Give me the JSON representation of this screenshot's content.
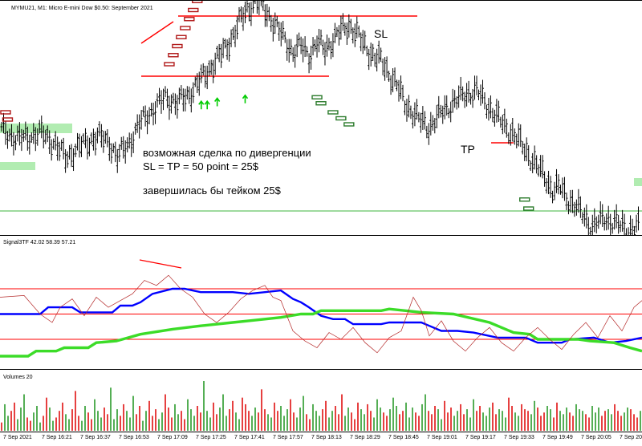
{
  "header": {
    "title": "MYMU21, M1:  Micro E-mini Dow $0.50: September 2021"
  },
  "annotations": {
    "sl_label": "SL",
    "tp_label": "TP",
    "note_line1": "возможная сделка по дивергенции",
    "note_line2": "SL = TP = 50 point = 25$",
    "note_line3": "завершилась бы тейком 25$"
  },
  "indicator": {
    "label": "Signal3TF 42.02 58.39 57.21"
  },
  "volumes": {
    "label": "Volumes 20"
  },
  "x_axis": {
    "ticks": [
      "7 Sep 2021",
      "7 Sep 16:21",
      "7 Sep 16:37",
      "7 Sep 16:53",
      "7 Sep 17:09",
      "7 Sep 17:25",
      "7 Sep 17:41",
      "7 Sep 17:57",
      "7 Sep 18:13",
      "7 Sep 18:29",
      "7 Sep 18:45",
      "7 Sep 19:01",
      "7 Sep 19:17",
      "7 Sep 19:33",
      "7 Sep 19:49",
      "7 Sep 20:05",
      "7 Sep 20"
    ]
  },
  "colors": {
    "background": "#ffffff",
    "bars": "#000000",
    "level_line": "#ff0000",
    "green_level": "#3cb43c",
    "blue_line": "#0000ff",
    "green_line": "#3cdc28",
    "osc_line": "#b42828",
    "vol_up": "#2a9a2a",
    "vol_down": "#e01010",
    "zone_green": "#9ee79e",
    "sell_marker": "#b01818",
    "buy_marker": "#2a7a2a",
    "arrow_up": "#00cc00"
  },
  "chart_data": [
    {
      "type": "ohlc",
      "name": "price",
      "x_start": "7 Sep 2021",
      "x_step": "1 minute",
      "levels": {
        "sl": 1,
        "entry": 0,
        "tp": -1,
        "green_line": -1.4
      },
      "close_path": [
        [
          0,
          -0.9
        ],
        [
          8,
          -1.05
        ],
        [
          14,
          -1.0
        ],
        [
          20,
          -0.95
        ],
        [
          26,
          -1.1
        ],
        [
          32,
          -1.35
        ],
        [
          40,
          -1.15
        ],
        [
          48,
          -1.0
        ],
        [
          54,
          -1.1
        ],
        [
          58,
          -1.35
        ],
        [
          64,
          -1.1
        ],
        [
          70,
          -0.75
        ],
        [
          76,
          -0.55
        ],
        [
          82,
          -0.35
        ],
        [
          88,
          -0.45
        ],
        [
          94,
          -0.3
        ],
        [
          100,
          -0.05
        ],
        [
          106,
          0.2
        ],
        [
          112,
          0.45
        ],
        [
          117,
          0.75
        ],
        [
          120,
          0.95
        ],
        [
          124,
          1.15
        ],
        [
          128,
          1.25
        ],
        [
          133,
          1.05
        ],
        [
          138,
          0.8
        ],
        [
          142,
          0.6
        ],
        [
          146,
          0.4
        ],
        [
          150,
          0.5
        ],
        [
          154,
          0.35
        ],
        [
          158,
          0.55
        ],
        [
          162,
          0.45
        ],
        [
          166,
          0.6
        ],
        [
          170,
          0.75
        ],
        [
          174,
          0.85
        ],
        [
          178,
          0.7
        ],
        [
          182,
          0.5
        ],
        [
          186,
          0.35
        ],
        [
          190,
          0.25
        ],
        [
          194,
          0.05
        ],
        [
          198,
          -0.15
        ],
        [
          202,
          -0.45
        ],
        [
          206,
          -0.6
        ],
        [
          210,
          -0.75
        ],
        [
          214,
          -0.85
        ],
        [
          218,
          -0.7
        ],
        [
          222,
          -0.55
        ],
        [
          226,
          -0.45
        ],
        [
          232,
          -0.3
        ],
        [
          238,
          -0.25
        ],
        [
          244,
          -0.5
        ],
        [
          250,
          -0.75
        ],
        [
          256,
          -0.95
        ],
        [
          262,
          -1.2
        ],
        [
          268,
          -1.5
        ],
        [
          272,
          -1.65
        ],
        [
          276,
          -1.9
        ],
        [
          280,
          -1.85
        ],
        [
          284,
          -2.05
        ],
        [
          290,
          -2.25
        ],
        [
          296,
          -2.5
        ],
        [
          302,
          -2.35
        ],
        [
          308,
          -2.45
        ],
        [
          314,
          -2.55
        ],
        [
          320,
          -2.5
        ]
      ],
      "sell_signals": [
        [
          2,
          -0.6
        ],
        [
          3,
          -0.72
        ],
        [
          84,
          0.2
        ],
        [
          86,
          0.35
        ],
        [
          88,
          0.5
        ],
        [
          90,
          0.65
        ],
        [
          92,
          0.8
        ],
        [
          94,
          0.95
        ],
        [
          96,
          1.1
        ],
        [
          98,
          1.25
        ]
      ],
      "buy_signals": [
        [
          158,
          -0.35
        ],
        [
          160,
          -0.45
        ],
        [
          166,
          -0.6
        ],
        [
          170,
          -0.7
        ],
        [
          174,
          -0.8
        ],
        [
          262,
          -2.05
        ],
        [
          264,
          -2.2
        ]
      ],
      "up_arrows": [
        [
          100,
          -0.55
        ],
        [
          103,
          -0.55
        ],
        [
          108,
          -0.5
        ],
        [
          122,
          -0.45
        ]
      ]
    },
    {
      "type": "line",
      "name": "Signal3TF",
      "series": [
        {
          "name": "42.02",
          "points": [
            [
              0,
              50
            ],
            [
              20,
              50
            ],
            [
              24,
              58
            ],
            [
              36,
              58
            ],
            [
              40,
              52
            ],
            [
              56,
              52
            ],
            [
              60,
              60
            ],
            [
              66,
              60
            ],
            [
              70,
              64
            ],
            [
              76,
              74
            ],
            [
              86,
              80
            ],
            [
              92,
              80
            ],
            [
              100,
              76
            ],
            [
              116,
              76
            ],
            [
              124,
              74
            ],
            [
              140,
              78
            ],
            [
              146,
              68
            ],
            [
              150,
              64
            ],
            [
              154,
              58
            ],
            [
              160,
              48
            ],
            [
              166,
              44
            ],
            [
              172,
              44
            ],
            [
              176,
              38
            ],
            [
              190,
              38
            ],
            [
              194,
              40
            ],
            [
              210,
              40
            ],
            [
              214,
              36
            ],
            [
              220,
              30
            ],
            [
              228,
              30
            ],
            [
              236,
              28
            ],
            [
              248,
              22
            ],
            [
              262,
              22
            ],
            [
              268,
              16
            ],
            [
              280,
              16
            ],
            [
              284,
              20
            ],
            [
              296,
              22
            ],
            [
              304,
              16
            ],
            [
              312,
              18
            ],
            [
              320,
              22
            ]
          ]
        },
        {
          "name": "58.39",
          "points": [
            [
              0,
              0
            ],
            [
              14,
              0
            ],
            [
              18,
              6
            ],
            [
              28,
              6
            ],
            [
              32,
              10
            ],
            [
              44,
              10
            ],
            [
              48,
              16
            ],
            [
              58,
              18
            ],
            [
              70,
              26
            ],
            [
              86,
              32
            ],
            [
              100,
              36
            ],
            [
              116,
              40
            ],
            [
              124,
              42
            ],
            [
              140,
              46
            ],
            [
              150,
              50
            ],
            [
              156,
              50
            ],
            [
              160,
              54
            ],
            [
              190,
              54
            ],
            [
              194,
              56
            ],
            [
              210,
              52
            ],
            [
              226,
              50
            ],
            [
              244,
              40
            ],
            [
              256,
              28
            ],
            [
              264,
              26
            ],
            [
              268,
              20
            ],
            [
              288,
              20
            ],
            [
              294,
              18
            ],
            [
              306,
              16
            ],
            [
              314,
              10
            ],
            [
              320,
              6
            ]
          ]
        },
        {
          "name": "57.21",
          "points": [
            [
              0,
              70
            ],
            [
              12,
              72
            ],
            [
              20,
              50
            ],
            [
              26,
              40
            ],
            [
              30,
              58
            ],
            [
              36,
              68
            ],
            [
              42,
              48
            ],
            [
              48,
              70
            ],
            [
              54,
              58
            ],
            [
              60,
              66
            ],
            [
              66,
              74
            ],
            [
              72,
              90
            ],
            [
              78,
              84
            ],
            [
              84,
              96
            ],
            [
              90,
              80
            ],
            [
              96,
              70
            ],
            [
              102,
              50
            ],
            [
              108,
              40
            ],
            [
              114,
              52
            ],
            [
              120,
              68
            ],
            [
              126,
              78
            ],
            [
              132,
              84
            ],
            [
              136,
              70
            ],
            [
              140,
              66
            ],
            [
              146,
              30
            ],
            [
              152,
              18
            ],
            [
              158,
              10
            ],
            [
              164,
              28
            ],
            [
              170,
              20
            ],
            [
              176,
              34
            ],
            [
              182,
              16
            ],
            [
              188,
              4
            ],
            [
              194,
              22
            ],
            [
              200,
              30
            ],
            [
              206,
              70
            ],
            [
              210,
              54
            ],
            [
              214,
              24
            ],
            [
              220,
              42
            ],
            [
              226,
              18
            ],
            [
              232,
              6
            ],
            [
              238,
              22
            ],
            [
              244,
              34
            ],
            [
              250,
              16
            ],
            [
              256,
              6
            ],
            [
              262,
              22
            ],
            [
              268,
              34
            ],
            [
              274,
              20
            ],
            [
              280,
              8
            ],
            [
              286,
              26
            ],
            [
              292,
              40
            ],
            [
              298,
              22
            ],
            [
              304,
              48
            ],
            [
              310,
              30
            ],
            [
              316,
              58
            ],
            [
              320,
              66
            ]
          ]
        }
      ],
      "levels": [
        80,
        50,
        20
      ]
    },
    {
      "type": "bar",
      "name": "Volumes 20",
      "values": [
        5,
        16,
        9,
        12,
        17,
        7,
        14,
        22,
        8,
        6,
        11,
        15,
        5,
        9,
        20,
        14,
        6,
        8,
        12,
        17,
        10,
        7,
        13,
        24,
        9,
        6,
        15,
        11,
        7,
        19,
        12,
        8,
        14,
        10,
        26,
        7,
        13,
        9,
        16,
        12,
        8,
        21,
        10,
        15,
        6,
        12,
        18,
        9,
        13,
        7,
        11,
        22,
        14,
        8,
        16,
        10,
        12,
        7,
        19,
        13,
        9,
        15,
        11,
        30,
        12,
        8,
        17,
        10,
        14,
        22,
        9,
        13,
        18,
        11,
        7,
        20,
        16,
        12,
        9,
        14,
        11,
        25,
        13,
        10,
        8,
        17,
        12,
        15,
        9,
        13,
        19,
        11,
        8,
        14,
        21,
        10,
        7,
        16,
        12,
        9,
        13,
        18,
        8,
        12,
        15,
        10,
        22,
        9,
        14,
        11,
        7,
        17,
        13,
        10,
        16,
        12,
        8,
        19,
        14,
        11,
        9,
        13,
        20,
        15,
        10,
        12,
        17,
        8,
        14,
        11,
        9,
        16,
        22,
        12,
        10,
        15,
        13,
        7,
        18,
        11,
        14,
        9,
        12,
        16,
        10,
        13,
        8,
        19,
        12,
        15,
        11,
        9,
        14,
        17,
        10,
        13,
        12,
        8,
        20,
        15,
        11,
        9,
        16,
        13,
        12,
        10,
        18,
        14,
        9,
        11,
        15,
        13,
        8,
        17,
        12,
        10,
        14,
        11,
        9,
        16,
        13,
        12,
        10,
        8,
        15,
        11,
        14,
        9,
        12,
        13,
        10,
        16,
        12,
        9,
        11,
        14,
        13,
        10,
        8,
        12
      ],
      "colors_up": true
    }
  ]
}
